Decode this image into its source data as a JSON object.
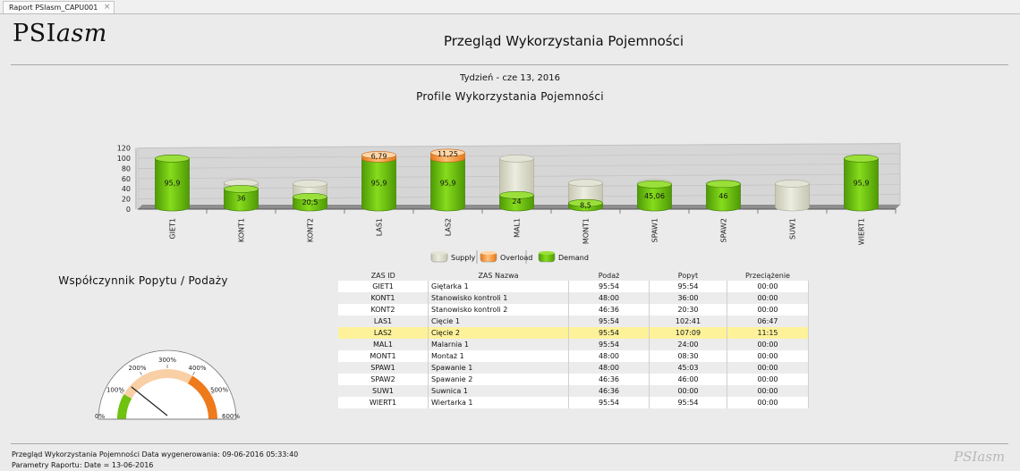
{
  "tab": {
    "label": "Raport PSIasm_CAPU001",
    "close": "×"
  },
  "logo": {
    "main": "PSI",
    "italic": "asm"
  },
  "report": {
    "title": "Przegląd Wykorzystania Pojemności",
    "week": "Tydzień - cze 13, 2016"
  },
  "chart_title": "Profile Wykorzystania Pojemności",
  "chart_data": {
    "type": "bar",
    "style": "3d-cylinder-stacked",
    "title": "Profile Wykorzystania Pojemności",
    "categories": [
      "GIET1",
      "KONT1",
      "KONT2",
      "LAS1",
      "LAS2",
      "MAL1",
      "MONT1",
      "SPAW1",
      "SPAW2",
      "SUW1",
      "WIERT1"
    ],
    "series": [
      {
        "name": "Supply",
        "color": "#d9d9c6",
        "values": [
          95.9,
          48,
          46.6,
          95.9,
          95.9,
          95.9,
          48,
          48,
          46.6,
          46.6,
          95.9
        ]
      },
      {
        "name": "Overload",
        "color": "#f59a3c",
        "values": [
          0,
          0,
          0,
          6.79,
          11.25,
          0,
          0,
          0,
          0,
          0,
          0
        ]
      },
      {
        "name": "Demand",
        "color": "#6fc20d",
        "values": [
          95.9,
          36,
          20.5,
          95.9,
          95.9,
          24,
          8.5,
          45.06,
          46,
          0,
          95.9
        ]
      }
    ],
    "data_labels": [
      "95,9",
      "36",
      "20,5",
      "95,9",
      "95,9",
      "24",
      "8,5",
      "45,06",
      "46",
      "",
      "95,9"
    ],
    "overload_labels": [
      "",
      "",
      "",
      "6,79",
      "11,25",
      "",
      "",
      "",
      "",
      "",
      ""
    ],
    "yticks": [
      "0",
      "20",
      "40",
      "60",
      "80",
      "100",
      "120"
    ],
    "ylim": [
      0,
      120
    ],
    "legend": [
      {
        "name": "Supply",
        "color": "#d9d9c6"
      },
      {
        "name": "Overload",
        "color": "#f59a3c"
      },
      {
        "name": "Demand",
        "color": "#6fc20d"
      }
    ],
    "legend_position": "bottom-center"
  },
  "gauge": {
    "title": "Współczynnik Popytu / Podaży",
    "ticks": [
      "0%",
      "100%",
      "200%",
      "300%",
      "400%",
      "500%",
      "600%"
    ],
    "value_percent": 140,
    "max_percent": 600,
    "colors": {
      "green": "#6fc20d",
      "peach": "#f9cfa5",
      "orange": "#ee7a1c"
    }
  },
  "table": {
    "headers": [
      "ZAS ID",
      "ZAS Nazwa",
      "Podaż",
      "Popyt",
      "Przeciążenie"
    ],
    "rows": [
      [
        "GIET1",
        "Giętarka 1",
        "95:54",
        "95:54",
        "00:00"
      ],
      [
        "KONT1",
        "Stanowisko kontroli 1",
        "48:00",
        "36:00",
        "00:00"
      ],
      [
        "KONT2",
        "Stanowisko kontroli 2",
        "46:36",
        "20:30",
        "00:00"
      ],
      [
        "LAS1",
        "Cięcie 1",
        "95:54",
        "102:41",
        "06:47"
      ],
      [
        "LAS2",
        "Cięcie 2",
        "95:54",
        "107:09",
        "11:15"
      ],
      [
        "MAL1",
        "Malarnia 1",
        "95:54",
        "24:00",
        "00:00"
      ],
      [
        "MONT1",
        "Montaż 1",
        "48:00",
        "08:30",
        "00:00"
      ],
      [
        "SPAW1",
        "Spawanie 1",
        "48:00",
        "45:03",
        "00:00"
      ],
      [
        "SPAW2",
        "Spawanie 2",
        "46:36",
        "46:00",
        "00:00"
      ],
      [
        "SUW1",
        "Suwnica 1",
        "46:36",
        "00:00",
        "00:00"
      ],
      [
        "WIERT1",
        "Wiertarka 1",
        "95:54",
        "95:54",
        "00:00"
      ]
    ],
    "highlight_row": "LAS2",
    "highlight_color": "#fdf29a"
  },
  "footer": {
    "line1": "Przegląd Wykorzystania Pojemności Data wygenerowania: 09-06-2016 05:33:40",
    "line2": "Parametry Raportu: Date = 13-06-2016",
    "logo": "PSIasm"
  }
}
